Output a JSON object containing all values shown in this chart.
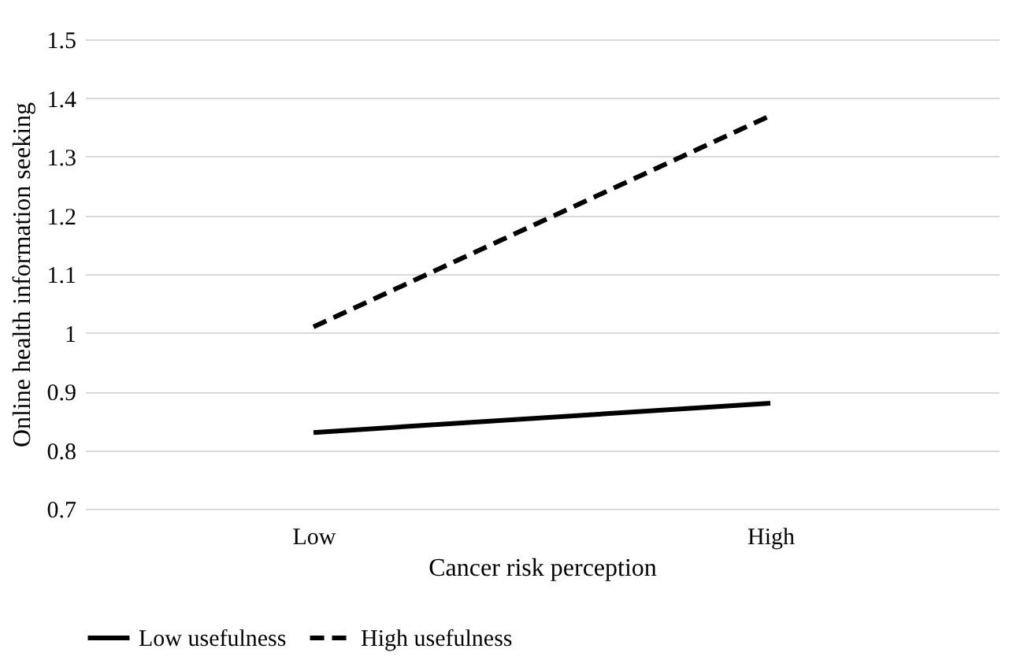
{
  "chart_data": {
    "type": "line",
    "xlabel": "Cancer risk perception",
    "ylabel": "Online health information seeking",
    "categories": [
      "Low",
      "High"
    ],
    "series": [
      {
        "name": "Low usefulness",
        "color": "#000000",
        "line_style": "solid",
        "values": [
          0.83,
          0.88
        ]
      },
      {
        "name": "High usefulness",
        "color": "#000000",
        "line_style": "dashed",
        "values": [
          1.01,
          1.37
        ]
      }
    ],
    "ylim": [
      0.7,
      1.5
    ],
    "yticks": [
      0.7,
      0.8,
      0.9,
      1,
      1.1,
      1.2,
      1.3,
      1.4,
      1.5
    ],
    "grid": "y",
    "legend": "bottom",
    "marker": "none"
  }
}
